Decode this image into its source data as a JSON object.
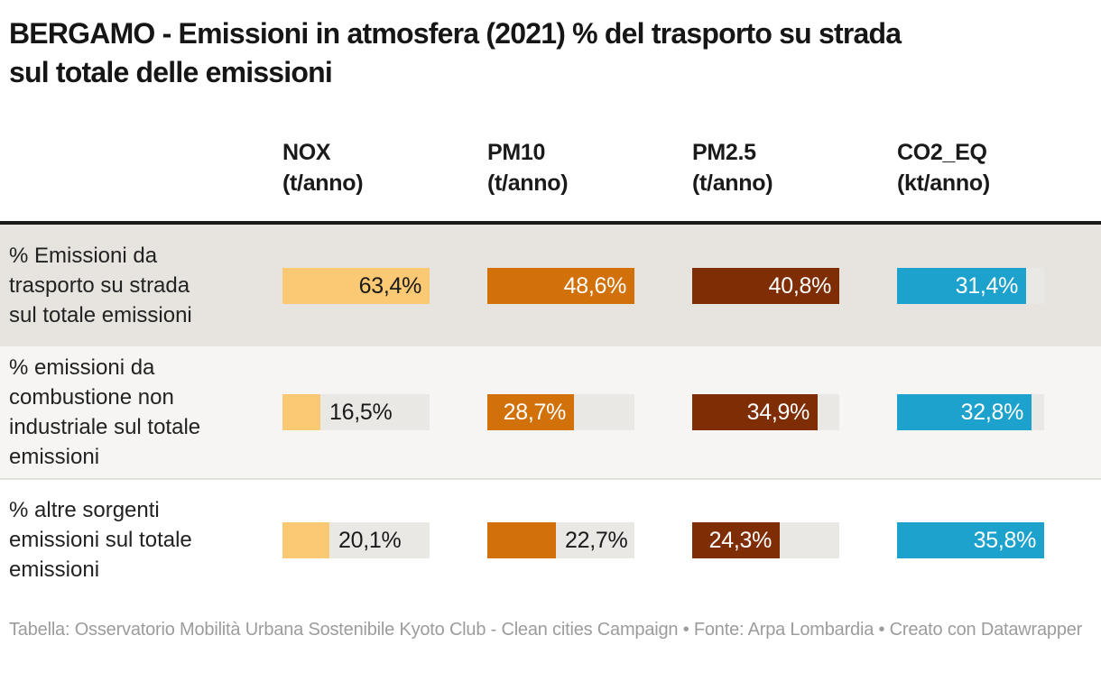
{
  "title": "BERGAMO - Emissioni in atmosfera (2021) % del trasporto su strada sul totale delle emissioni",
  "footer": "Tabella: Osservatorio Mobilità Urbana Sostenibile Kyoto Club - Clean cities Campaign • Fonte: Arpa Lombardia • Creato con Datawrapper",
  "chart_data": {
    "type": "bar",
    "subtype": "table-of-horizontal-bars",
    "value_unit": "%",
    "columns": [
      {
        "id": "nox",
        "label": "NOX",
        "unit": "(t/anno)",
        "bar_color": "#fbc873",
        "value_text_color_inside": "#1a1a1a",
        "scale_max": 63.4
      },
      {
        "id": "pm10",
        "label": "PM10",
        "unit": "(t/anno)",
        "bar_color": "#d2700a",
        "value_text_color_inside": "#ffffff",
        "scale_max": 48.6
      },
      {
        "id": "pm2_5",
        "label": "PM2.5",
        "unit": "(t/anno)",
        "bar_color": "#7f2d05",
        "value_text_color_inside": "#ffffff",
        "scale_max": 40.8
      },
      {
        "id": "co2_eq",
        "label": "CO2_EQ",
        "unit": "(kt/anno)",
        "bar_color": "#1ca2cc",
        "value_text_color_inside": "#ffffff",
        "scale_max": 35.8
      }
    ],
    "rows": [
      {
        "label": "% Emissioni da trasporto su strada sul totale emissioni",
        "values": [
          63.4,
          48.6,
          40.8,
          31.4
        ],
        "value_labels": [
          "63,4%",
          "48,6%",
          "40,8%",
          "31,4%"
        ]
      },
      {
        "label": "% emissioni da combustione non industriale sul totale emissioni",
        "values": [
          16.5,
          28.7,
          34.9,
          32.8
        ],
        "value_labels": [
          "16,5%",
          "28,7%",
          "34,9%",
          "32,8%"
        ]
      },
      {
        "label": "% altre sorgenti emissioni sul totale emissioni",
        "values": [
          20.1,
          22.7,
          24.3,
          35.8
        ],
        "value_labels": [
          "20,1%",
          "22,7%",
          "24,3%",
          "35,8%"
        ]
      }
    ],
    "row_backgrounds": [
      "#e7e4df",
      "#f6f5f3",
      "#ffffff"
    ],
    "track_color": "#e9e8e4",
    "value_text_color_outside": "#1a1a1a",
    "header_rule_color": "#1a1a1a",
    "legend": "none",
    "grid": "off"
  }
}
